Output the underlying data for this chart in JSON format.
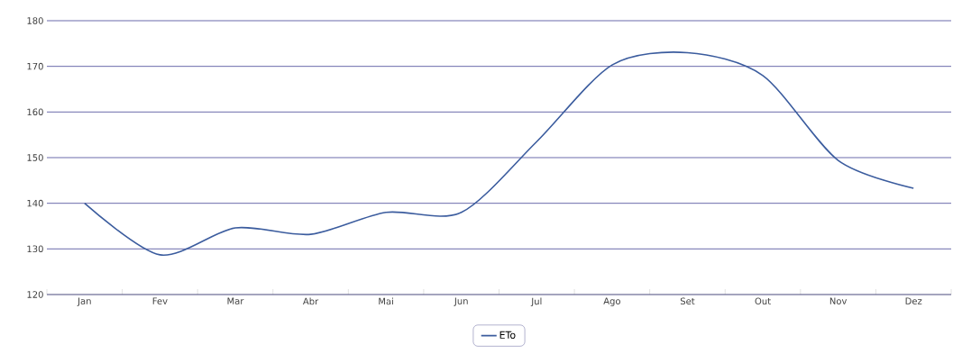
{
  "chart_data": {
    "type": "line",
    "categories": [
      "Jan",
      "Fev",
      "Mar",
      "Abr",
      "Mai",
      "Jun",
      "Jul",
      "Ago",
      "Set",
      "Out",
      "Nov",
      "Dez"
    ],
    "series": [
      {
        "name": "ETo",
        "color": "#3b5c9e",
        "values": [
          140,
          128.7,
          134.6,
          133.2,
          138,
          138,
          153.5,
          170.3,
          173,
          168,
          149.4,
          143.3
        ]
      }
    ],
    "ylim": [
      120,
      180
    ],
    "yticks": [
      120,
      130,
      140,
      150,
      160,
      170,
      180
    ],
    "grid": "y",
    "legend": "bottom",
    "marker": "none",
    "line_style": "solid"
  }
}
